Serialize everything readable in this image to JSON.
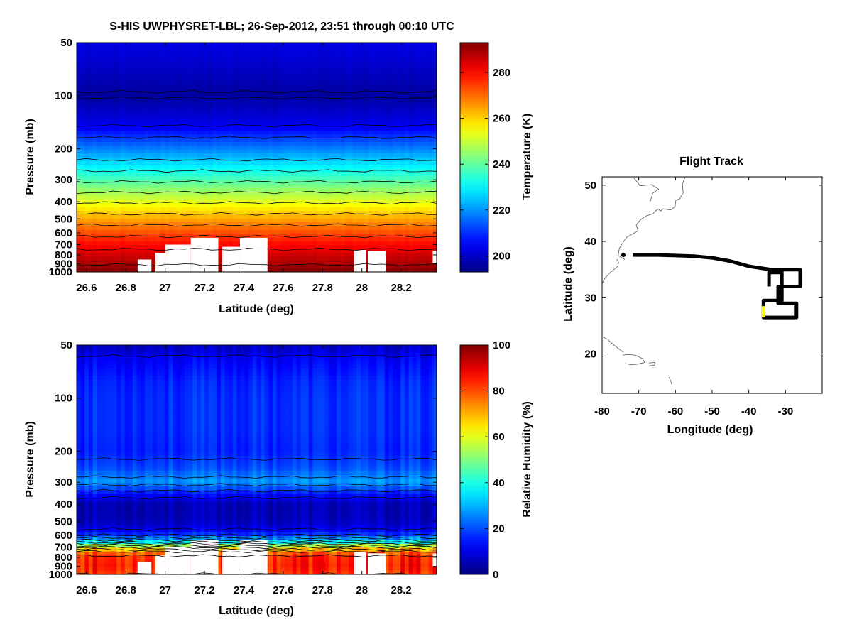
{
  "figure_title": "S-HIS UWPHYSRET-LBL;   26-Sep-2012, 23:51 through 00:10 UTC",
  "chart_data": [
    {
      "id": "temperature",
      "type": "heatmap",
      "title": "",
      "xlabel": "Latitude (deg)",
      "ylabel": "Pressure (mb)",
      "xlim": [
        26.55,
        28.38
      ],
      "ylim": [
        1000,
        50
      ],
      "yscale": "log",
      "xticks": [
        26.6,
        26.8,
        27,
        27.2,
        27.4,
        27.6,
        27.8,
        28,
        28.2
      ],
      "xtick_labels": [
        "26.6",
        "26.8",
        "27",
        "27.2",
        "27.4",
        "27.6",
        "27.8",
        "28",
        "28.2"
      ],
      "yticks": [
        50,
        100,
        200,
        300,
        400,
        500,
        600,
        700,
        800,
        900,
        1000
      ],
      "ytick_labels": [
        "50",
        "100",
        "200",
        "300",
        "400",
        "500",
        "600",
        "700",
        "800",
        "900",
        "1000"
      ],
      "colorbar": {
        "label": "Temperature (K)",
        "range": [
          193,
          293
        ],
        "ticks": [
          200,
          220,
          240,
          260,
          280
        ],
        "tick_labels": [
          "200",
          "220",
          "240",
          "260",
          "280"
        ]
      },
      "profile": {
        "pressure": [
          50,
          70,
          100,
          150,
          200,
          250,
          300,
          400,
          500,
          600,
          700,
          800,
          900,
          1000
        ],
        "value": [
          203,
          200,
          196,
          204,
          218,
          229,
          238,
          253,
          264,
          273,
          280,
          285,
          289,
          293
        ]
      },
      "missing_data": [
        [
          26.86,
          26.93,
          850,
          1000
        ],
        [
          26.95,
          27.0,
          780,
          1000
        ],
        [
          27.0,
          27.13,
          700,
          1000
        ],
        [
          27.13,
          27.27,
          640,
          1000
        ],
        [
          27.29,
          27.38,
          720,
          1000
        ],
        [
          27.38,
          27.52,
          640,
          1000
        ],
        [
          27.96,
          28.02,
          750,
          1000
        ],
        [
          28.03,
          28.12,
          760,
          1000
        ],
        [
          28.36,
          28.38,
          760,
          900
        ]
      ]
    },
    {
      "id": "humidity",
      "type": "heatmap",
      "title": "",
      "xlabel": "Latitude (deg)",
      "ylabel": "Pressure (mb)",
      "xlim": [
        26.55,
        28.38
      ],
      "ylim": [
        1000,
        50
      ],
      "yscale": "log",
      "xticks": [
        26.6,
        26.8,
        27,
        27.2,
        27.4,
        27.6,
        27.8,
        28,
        28.2
      ],
      "xtick_labels": [
        "26.6",
        "26.8",
        "27",
        "27.2",
        "27.4",
        "27.6",
        "27.8",
        "28",
        "28.2"
      ],
      "yticks": [
        50,
        100,
        200,
        300,
        400,
        500,
        600,
        700,
        800,
        900,
        1000
      ],
      "ytick_labels": [
        "50",
        "100",
        "200",
        "300",
        "400",
        "500",
        "600",
        "700",
        "800",
        "900",
        "1000"
      ],
      "colorbar": {
        "label": "Relative Humidity (%)",
        "range": [
          0,
          100
        ],
        "ticks": [
          0,
          20,
          40,
          60,
          80,
          100
        ],
        "tick_labels": [
          "0",
          "20",
          "40",
          "60",
          "80",
          "100"
        ]
      },
      "profile": {
        "pressure": [
          50,
          60,
          80,
          100,
          150,
          200,
          250,
          300,
          350,
          400,
          500,
          550,
          600,
          650,
          700,
          750,
          800,
          900,
          1000
        ],
        "value": [
          6,
          12,
          16,
          17,
          17,
          16,
          20,
          28,
          14,
          5,
          6,
          10,
          18,
          35,
          60,
          78,
          84,
          86,
          82
        ]
      },
      "missing_data": [
        [
          26.86,
          26.93,
          850,
          1000
        ],
        [
          26.95,
          27.0,
          780,
          1000
        ],
        [
          27.0,
          27.13,
          700,
          1000
        ],
        [
          27.13,
          27.27,
          640,
          1000
        ],
        [
          27.29,
          27.38,
          720,
          1000
        ],
        [
          27.38,
          27.52,
          640,
          1000
        ],
        [
          27.96,
          28.02,
          750,
          1000
        ],
        [
          28.03,
          28.12,
          760,
          1000
        ],
        [
          28.36,
          28.38,
          760,
          900
        ]
      ]
    },
    {
      "id": "flight-track",
      "type": "line",
      "title": "Flight Track",
      "xlabel": "Longitude (deg)",
      "ylabel": "Latitude (deg)",
      "xlim": [
        -80,
        -20
      ],
      "ylim": [
        13,
        51.5
      ],
      "xticks": [
        -80,
        -70,
        -60,
        -50,
        -40,
        -30
      ],
      "xtick_labels": [
        "-80",
        "-70",
        "-60",
        "-50",
        "-40",
        "-30"
      ],
      "yticks": [
        20,
        30,
        40,
        50
      ],
      "ytick_labels": [
        "20",
        "30",
        "40",
        "50"
      ],
      "series": [
        {
          "name": "track",
          "color": "#000000",
          "points": [
            [
              -71.6,
              37.6
            ],
            [
              -65,
              37.6
            ],
            [
              -60,
              37.5
            ],
            [
              -55,
              37.4
            ],
            [
              -50,
              37.1
            ],
            [
              -45,
              36.5
            ],
            [
              -40,
              35.6
            ],
            [
              -34,
              35.0
            ],
            [
              -26,
              35.0
            ],
            [
              -26,
              32.0
            ],
            [
              -32,
              32.0
            ],
            [
              -32,
              29.0
            ],
            [
              -27,
              29.0
            ],
            [
              -27,
              26.5
            ],
            [
              -36,
              26.5
            ],
            [
              -36,
              29.5
            ],
            [
              -31,
              29.5
            ],
            [
              -31,
              34.5
            ],
            [
              -34.5,
              34.5
            ],
            [
              -34.5,
              32.0
            ]
          ]
        },
        {
          "name": "current segment",
          "color": "#ffff00",
          "points": [
            [
              -36,
              26.5
            ],
            [
              -36,
              28.5
            ]
          ]
        },
        {
          "name": "start",
          "color": "#000000",
          "points": [
            [
              -74.2,
              37.6
            ]
          ]
        }
      ],
      "coastlines": [
        [
          [
            -73.8,
            36.8
          ],
          [
            -75.6,
            37.5
          ],
          [
            -75.3,
            38.8
          ],
          [
            -73.8,
            40.3
          ],
          [
            -73.2,
            40.8
          ],
          [
            -71.5,
            41.4
          ],
          [
            -70.2,
            41.9
          ],
          [
            -70.7,
            42.9
          ],
          [
            -69.5,
            43.9
          ],
          [
            -67.8,
            44.6
          ],
          [
            -66.2,
            44.9
          ],
          [
            -64.8,
            45.8
          ],
          [
            -64.0,
            45.4
          ],
          [
            -63.4,
            45.8
          ],
          [
            -61.2,
            45.6
          ],
          [
            -60.1,
            46.2
          ],
          [
            -59.9,
            47.3
          ],
          [
            -58.8,
            47.6
          ],
          [
            -57.9,
            48.7
          ],
          [
            -58.1,
            50.1
          ],
          [
            -57.4,
            51.5
          ]
        ],
        [
          [
            -66.8,
            47.2
          ],
          [
            -66.2,
            48.6
          ],
          [
            -64.6,
            49.3
          ],
          [
            -66.5,
            50.1
          ],
          [
            -69.6,
            49.9
          ],
          [
            -71.3,
            51.3
          ]
        ],
        [
          [
            -80,
            32.5
          ],
          [
            -79.2,
            33.5
          ],
          [
            -77.6,
            34.6
          ],
          [
            -76.6,
            35.1
          ],
          [
            -75.7,
            35.6
          ],
          [
            -75.5,
            36.3
          ],
          [
            -76.0,
            36.9
          ]
        ],
        [
          [
            -80,
            23.1
          ],
          [
            -78.5,
            22.6
          ],
          [
            -77.2,
            21.8
          ],
          [
            -75.6,
            21.0
          ],
          [
            -74.2,
            20.3
          ]
        ],
        [
          [
            -74.4,
            19.8
          ],
          [
            -72.8,
            19.9
          ],
          [
            -71.0,
            19.8
          ],
          [
            -69.0,
            19.2
          ],
          [
            -68.4,
            18.5
          ],
          [
            -70.2,
            18.2
          ],
          [
            -72.0,
            18.1
          ],
          [
            -73.8,
            18.3
          ]
        ],
        [
          [
            -67.2,
            18.4
          ],
          [
            -65.6,
            18.5
          ],
          [
            -65.7,
            18.0
          ],
          [
            -67.2,
            17.9
          ]
        ],
        [
          [
            -61.8,
            15.9
          ],
          [
            -61.4,
            15.4
          ],
          [
            -61.0,
            14.6
          ]
        ]
      ]
    }
  ]
}
